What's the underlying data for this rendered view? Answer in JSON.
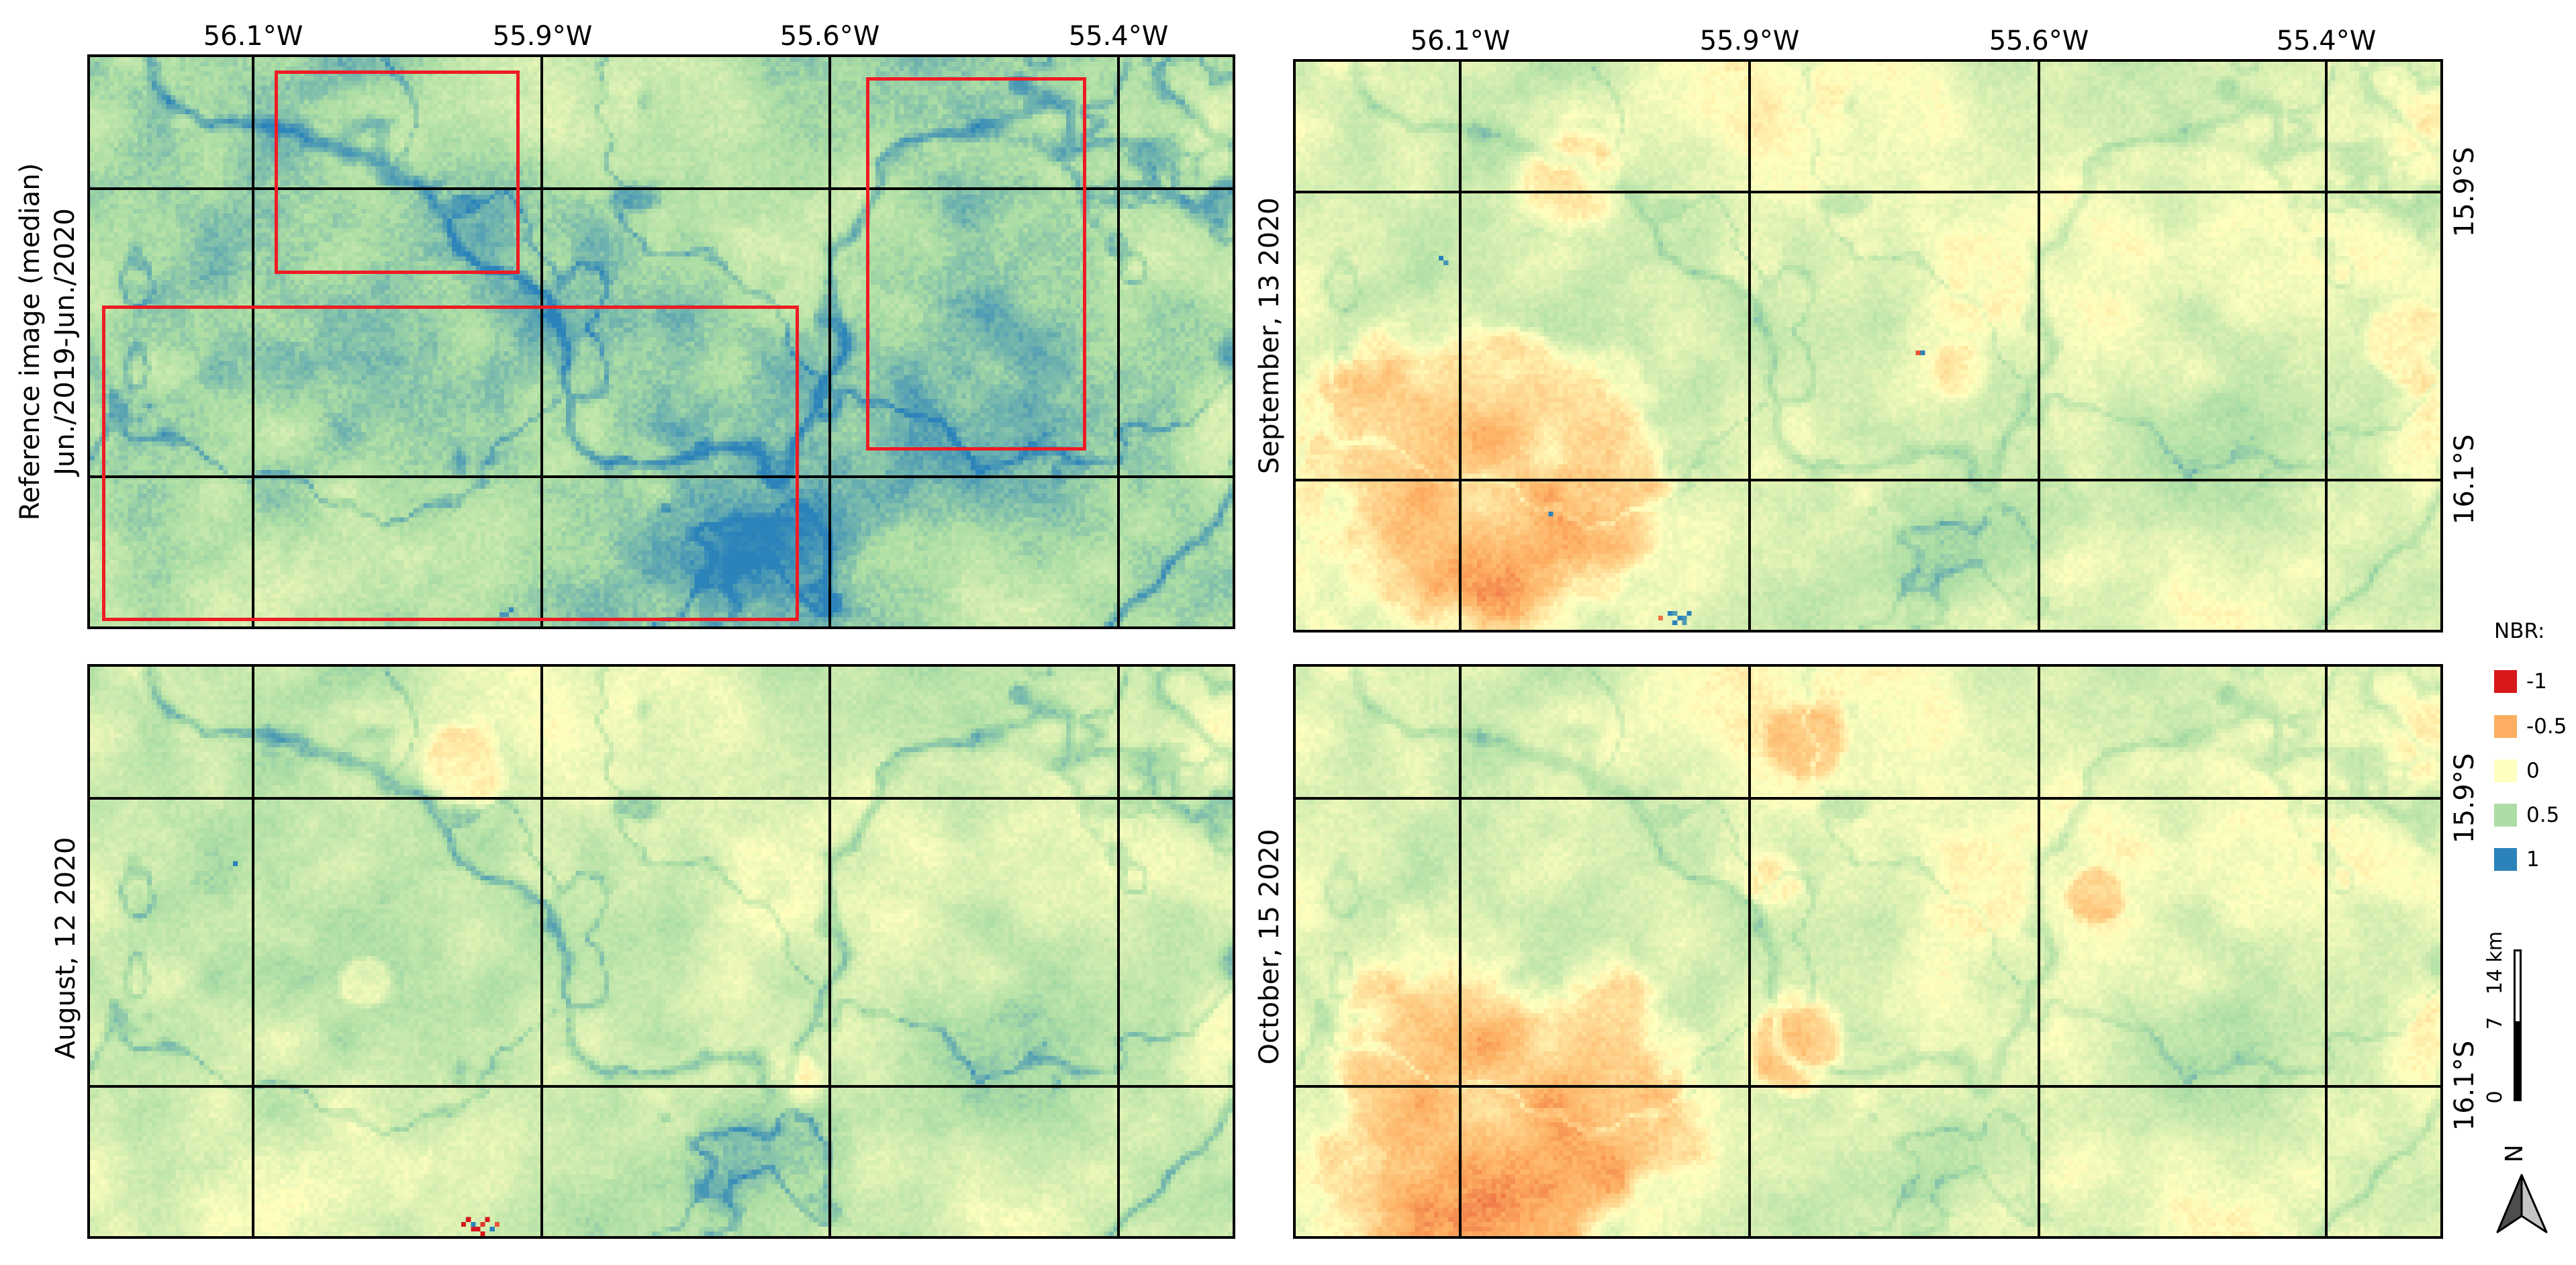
{
  "panels": {
    "reference": {
      "title_line1": "Reference image (median)",
      "title_line2": "Jun./2019-Jun./2020"
    },
    "september": {
      "title": "September, 13 2020"
    },
    "august": {
      "title": "August, 12 2020"
    },
    "october": {
      "title": "October, 15 2020"
    }
  },
  "graticule": {
    "longitude_labels": [
      "56.1°W",
      "55.9°W",
      "55.6°W",
      "55.4°W"
    ],
    "latitude_labels": [
      "15.9°S",
      "16.1°S"
    ]
  },
  "legend": {
    "title": "NBR:",
    "items": [
      {
        "label": "-1",
        "color": "#d7191c"
      },
      {
        "label": "-0.5",
        "color": "#fdae61"
      },
      {
        "label": "0",
        "color": "#ffffbf"
      },
      {
        "label": "0.5",
        "color": "#abdda4"
      },
      {
        "label": "1",
        "color": "#2b83ba"
      }
    ]
  },
  "scale_bar": {
    "labels": [
      "0",
      "7",
      "14 km"
    ]
  },
  "north_arrow": {
    "label": "N"
  },
  "highlight_color": "#ee1c24"
}
